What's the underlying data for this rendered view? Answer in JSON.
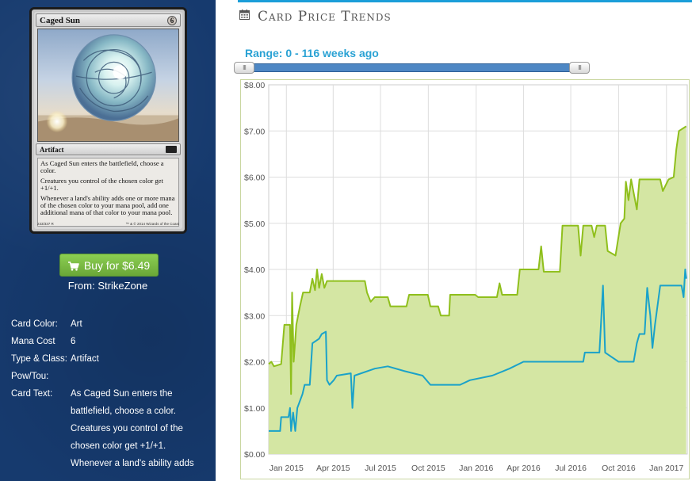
{
  "card": {
    "name": "Caged Sun",
    "mana_cost_symbol": "6",
    "type_line": "Artifact",
    "rules_text": [
      "As Caged Sun enters the battlefield, choose a color.",
      "Creatures you control of the chosen color get +1/+1.",
      "Whenever a land's ability adds one or more mana of the chosen color to your mana pool, add one additional mana of that color to your mana pool."
    ],
    "collector_number": "233/337 R",
    "copyright": "™ & © 2014 Wizards of the Coast"
  },
  "buy": {
    "label": "Buy for $6.49",
    "icon": "shopping-cart-icon",
    "from": "From: StrikeZone",
    "color": "#7cbd48"
  },
  "info": [
    {
      "label": "Card Color:",
      "value": "Art"
    },
    {
      "label": "Mana Cost",
      "value": "6"
    },
    {
      "label": "Type & Class:",
      "value": "Artifact"
    },
    {
      "label": "Pow/Tou:",
      "value": ""
    },
    {
      "label": "Card Text:",
      "value": "As Caged Sun enters the battlefield, choose a color. Creatures you control of the chosen color get +1/+1. Whenever a land's ability adds"
    }
  ],
  "trends": {
    "title": "Card Price Trends",
    "icon": "calendar-icon",
    "range_label": "Range: 0 - 116 weeks ago",
    "slider": {
      "min": 0,
      "max": 116,
      "low": 0,
      "high": 116,
      "handle_glyph": "III"
    }
  },
  "colors": {
    "panel_bg": "#163a6e",
    "accent_blue": "#1b9ed9",
    "series_green": "#8fbf1c",
    "series_green_fill": "#d4e6a3",
    "series_blue": "#1aa2c9"
  },
  "chart_data": {
    "type": "line",
    "title": "",
    "xlabel": "",
    "ylabel": "",
    "x_ticks": [
      "Jan 2015",
      "Apr 2015",
      "Jul 2015",
      "Oct 2015",
      "Jan 2016",
      "Apr 2016",
      "Jul 2016",
      "Oct 2016",
      "Jan 2017"
    ],
    "x_range": [
      "2014-11-28",
      "2017-02-10"
    ],
    "y_ticks": [
      "$0.00",
      "$1.00",
      "$2.00",
      "$3.00",
      "$4.00",
      "$5.00",
      "$6.00",
      "$7.00",
      "$8.00"
    ],
    "ylim": [
      0,
      8
    ],
    "grid": true,
    "series": [
      {
        "color": "#8fbf1c",
        "area": true,
        "points": [
          [
            "2014-11-28",
            1.95
          ],
          [
            "2014-12-03",
            2.0
          ],
          [
            "2014-12-08",
            1.9
          ],
          [
            "2014-12-22",
            1.95
          ],
          [
            "2014-12-28",
            2.8
          ],
          [
            "2015-01-08",
            2.8
          ],
          [
            "2015-01-10",
            1.3
          ],
          [
            "2015-01-12",
            3.5
          ],
          [
            "2015-01-15",
            2.0
          ],
          [
            "2015-01-20",
            2.8
          ],
          [
            "2015-01-27",
            3.2
          ],
          [
            "2015-02-02",
            3.5
          ],
          [
            "2015-02-15",
            3.5
          ],
          [
            "2015-02-20",
            3.8
          ],
          [
            "2015-02-25",
            3.55
          ],
          [
            "2015-03-01",
            4.0
          ],
          [
            "2015-03-05",
            3.6
          ],
          [
            "2015-03-10",
            3.9
          ],
          [
            "2015-03-15",
            3.6
          ],
          [
            "2015-03-20",
            3.75
          ],
          [
            "2015-06-01",
            3.75
          ],
          [
            "2015-06-05",
            3.5
          ],
          [
            "2015-06-12",
            3.3
          ],
          [
            "2015-06-20",
            3.4
          ],
          [
            "2015-07-15",
            3.4
          ],
          [
            "2015-07-20",
            3.2
          ],
          [
            "2015-08-20",
            3.2
          ],
          [
            "2015-08-25",
            3.45
          ],
          [
            "2015-09-30",
            3.45
          ],
          [
            "2015-10-05",
            3.2
          ],
          [
            "2015-10-20",
            3.2
          ],
          [
            "2015-10-25",
            3.0
          ],
          [
            "2015-11-10",
            3.0
          ],
          [
            "2015-11-12",
            3.45
          ],
          [
            "2015-12-30",
            3.45
          ],
          [
            "2016-01-05",
            3.4
          ],
          [
            "2016-02-10",
            3.4
          ],
          [
            "2016-02-15",
            3.7
          ],
          [
            "2016-02-20",
            3.45
          ],
          [
            "2016-03-20",
            3.45
          ],
          [
            "2016-03-25",
            4.0
          ],
          [
            "2016-04-30",
            4.0
          ],
          [
            "2016-05-05",
            4.5
          ],
          [
            "2016-05-10",
            3.95
          ],
          [
            "2016-06-10",
            3.95
          ],
          [
            "2016-06-15",
            4.95
          ],
          [
            "2016-07-15",
            4.95
          ],
          [
            "2016-07-20",
            4.3
          ],
          [
            "2016-07-25",
            4.95
          ],
          [
            "2016-08-10",
            4.95
          ],
          [
            "2016-08-15",
            4.7
          ],
          [
            "2016-08-20",
            4.95
          ],
          [
            "2016-09-05",
            4.95
          ],
          [
            "2016-09-10",
            4.4
          ],
          [
            "2016-09-25",
            4.3
          ],
          [
            "2016-10-05",
            5.0
          ],
          [
            "2016-10-12",
            5.1
          ],
          [
            "2016-10-15",
            5.9
          ],
          [
            "2016-10-20",
            5.5
          ],
          [
            "2016-10-25",
            5.95
          ],
          [
            "2016-11-05",
            5.3
          ],
          [
            "2016-11-10",
            5.95
          ],
          [
            "2016-12-20",
            5.95
          ],
          [
            "2016-12-25",
            5.7
          ],
          [
            "2017-01-05",
            5.95
          ],
          [
            "2017-01-15",
            6.0
          ],
          [
            "2017-01-20",
            6.6
          ],
          [
            "2017-01-25",
            7.0
          ],
          [
            "2017-02-08",
            7.1
          ]
        ]
      },
      {
        "color": "#1aa2c9",
        "area": false,
        "points": [
          [
            "2014-11-28",
            0.5
          ],
          [
            "2014-12-20",
            0.5
          ],
          [
            "2014-12-22",
            0.8
          ],
          [
            "2015-01-05",
            0.8
          ],
          [
            "2015-01-08",
            1.0
          ],
          [
            "2015-01-10",
            0.5
          ],
          [
            "2015-01-14",
            0.9
          ],
          [
            "2015-01-18",
            0.5
          ],
          [
            "2015-01-22",
            1.0
          ],
          [
            "2015-02-01",
            1.3
          ],
          [
            "2015-02-05",
            1.5
          ],
          [
            "2015-02-15",
            1.5
          ],
          [
            "2015-02-20",
            2.4
          ],
          [
            "2015-03-05",
            2.5
          ],
          [
            "2015-03-10",
            2.6
          ],
          [
            "2015-03-18",
            2.65
          ],
          [
            "2015-03-20",
            1.6
          ],
          [
            "2015-03-25",
            1.5
          ],
          [
            "2015-04-02",
            1.6
          ],
          [
            "2015-04-08",
            1.7
          ],
          [
            "2015-05-05",
            1.75
          ],
          [
            "2015-05-08",
            1.0
          ],
          [
            "2015-05-12",
            1.7
          ],
          [
            "2015-06-20",
            1.85
          ],
          [
            "2015-07-15",
            1.9
          ],
          [
            "2015-08-15",
            1.8
          ],
          [
            "2015-09-20",
            1.7
          ],
          [
            "2015-10-05",
            1.5
          ],
          [
            "2015-12-01",
            1.5
          ],
          [
            "2015-12-20",
            1.6
          ],
          [
            "2016-02-01",
            1.7
          ],
          [
            "2016-03-05",
            1.85
          ],
          [
            "2016-04-01",
            2.0
          ],
          [
            "2016-07-25",
            2.0
          ],
          [
            "2016-07-28",
            2.2
          ],
          [
            "2016-08-25",
            2.2
          ],
          [
            "2016-08-28",
            2.8
          ],
          [
            "2016-09-01",
            3.65
          ],
          [
            "2016-09-05",
            2.2
          ],
          [
            "2016-10-01",
            2.0
          ],
          [
            "2016-10-30",
            2.0
          ],
          [
            "2016-11-05",
            2.4
          ],
          [
            "2016-11-10",
            2.6
          ],
          [
            "2016-11-20",
            2.6
          ],
          [
            "2016-11-25",
            3.6
          ],
          [
            "2016-12-01",
            3.0
          ],
          [
            "2016-12-05",
            2.3
          ],
          [
            "2016-12-10",
            2.8
          ],
          [
            "2016-12-20",
            3.65
          ],
          [
            "2017-01-30",
            3.65
          ],
          [
            "2017-02-03",
            3.4
          ],
          [
            "2017-02-06",
            4.0
          ],
          [
            "2017-02-08",
            3.8
          ]
        ]
      }
    ]
  }
}
